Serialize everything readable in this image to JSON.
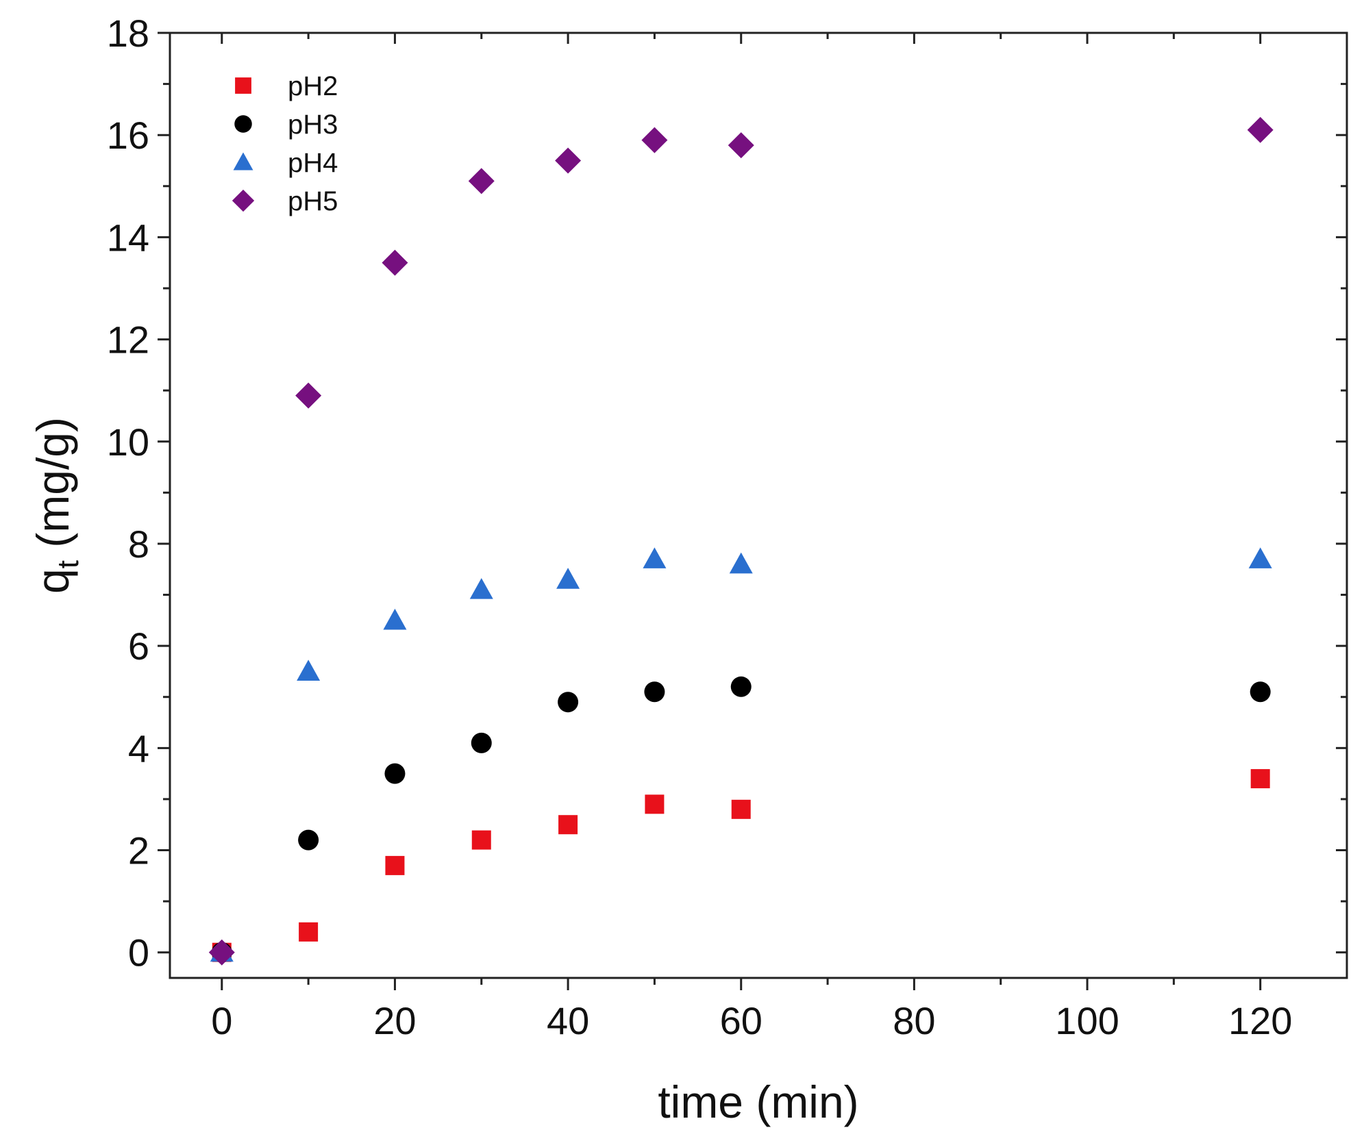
{
  "chart_data": {
    "type": "scatter",
    "title": "",
    "xlabel": "time (min)",
    "ylabel_main": "q",
    "ylabel_sub": "t",
    "ylabel_unit": " (mg/g)",
    "xlim": [
      -6,
      130
    ],
    "ylim": [
      -0.5,
      18
    ],
    "xticks": [
      0,
      20,
      40,
      60,
      80,
      100,
      120
    ],
    "xtick_labels": [
      "0",
      "20",
      "40",
      "60",
      "80",
      "100",
      "120"
    ],
    "xminor": [
      10,
      30,
      50,
      70,
      90,
      110
    ],
    "yticks": [
      0,
      2,
      4,
      6,
      8,
      10,
      12,
      14,
      16,
      18
    ],
    "ytick_labels": [
      "0",
      "2",
      "4",
      "6",
      "8",
      "10",
      "12",
      "14",
      "16",
      "18"
    ],
    "yminor": [
      1,
      3,
      5,
      7,
      9,
      11,
      13,
      15,
      17
    ],
    "grid": false,
    "legend_position": "top-left",
    "x": [
      0,
      10,
      20,
      30,
      40,
      50,
      60,
      120
    ],
    "series": [
      {
        "name": "pH2",
        "marker": "square",
        "color": "#e8111b",
        "values": [
          0,
          0.4,
          1.7,
          2.2,
          2.5,
          2.9,
          2.8,
          3.4
        ]
      },
      {
        "name": "pH3",
        "marker": "circle",
        "color": "#000000",
        "values": [
          0,
          2.2,
          3.5,
          4.1,
          4.9,
          5.1,
          5.2,
          5.1
        ]
      },
      {
        "name": "pH4",
        "marker": "triangle",
        "color": "#2a6fcf",
        "values": [
          0,
          5.5,
          6.5,
          7.1,
          7.3,
          7.7,
          7.6,
          7.7
        ]
      },
      {
        "name": "pH5",
        "marker": "diamond",
        "color": "#76107f",
        "values": [
          0,
          10.9,
          13.5,
          15.1,
          15.5,
          15.9,
          15.8,
          16.1
        ]
      }
    ]
  }
}
